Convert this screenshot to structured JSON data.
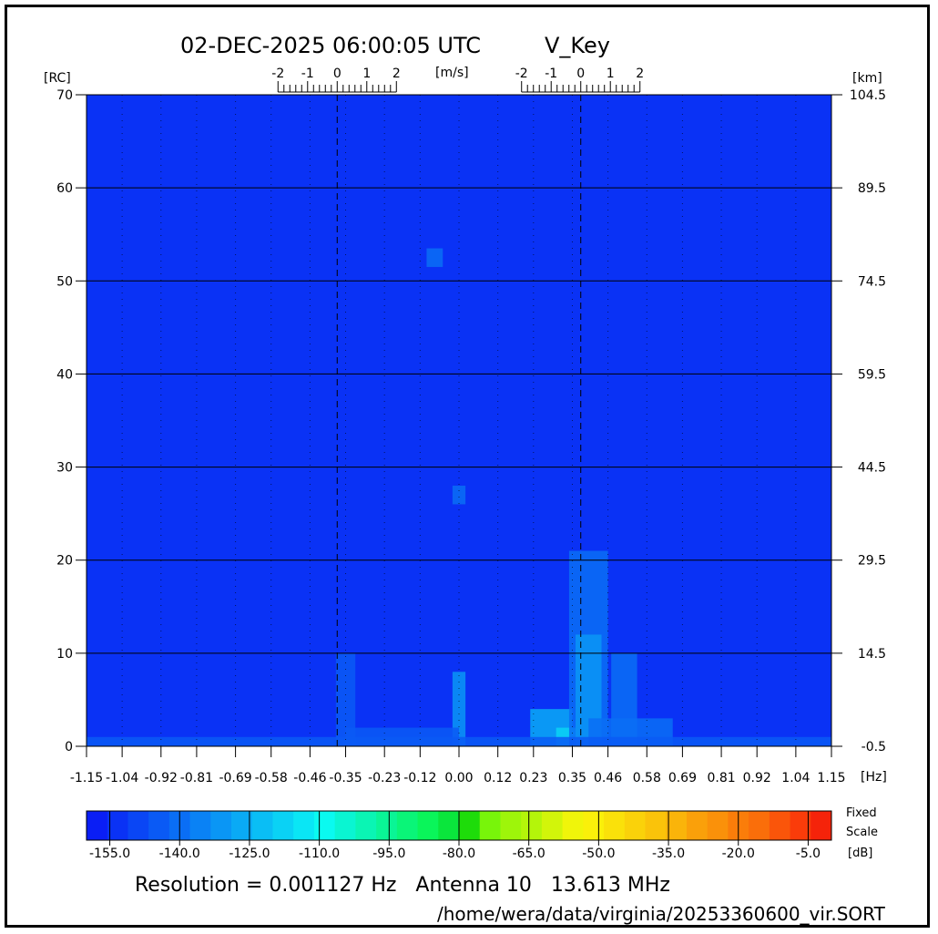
{
  "header": {
    "timestamp": "02-DEC-2025 06:00:05 UTC",
    "station": "V_Key"
  },
  "footer": {
    "resolution": "Resolution = 0.001127 Hz   Antenna 10   13.613 MHz",
    "path": "/home/wera/data/virginia/20253360600_vir.SORT"
  },
  "chart_data": {
    "type": "heatmap",
    "xlabel_unit": "[Hz]",
    "ylabel_left_unit": "[RC]",
    "ylabel_right_unit": "[km]",
    "velocity_unit": "[m/s]",
    "x_ticks": [
      "-1.15",
      "-1.04",
      "-0.92",
      "-0.81",
      "-0.69",
      "-0.58",
      "-0.46",
      "-0.35",
      "-0.23",
      "-0.12",
      "0.00",
      "0.12",
      "0.23",
      "0.35",
      "0.46",
      "0.58",
      "0.69",
      "0.81",
      "0.92",
      "1.04",
      "1.15"
    ],
    "xlim": [
      -1.15,
      1.15
    ],
    "y_left_ticks": [
      "0",
      "10",
      "20",
      "30",
      "40",
      "50",
      "60",
      "70"
    ],
    "ylim_left": [
      0,
      70
    ],
    "y_right_ticks": [
      "-0.5",
      "14.5",
      "29.5",
      "44.5",
      "59.5",
      "74.5",
      "89.5",
      "104.5"
    ],
    "velocity_ticks": [
      "-2",
      "-1",
      "0",
      "1",
      "2"
    ],
    "velocity_axis_centers_hz": [
      -0.376,
      0.376
    ],
    "grid": true,
    "colorbar": {
      "ticks": [
        "-155.0",
        "-140.0",
        "-125.0",
        "-110.0",
        "-95.0",
        "-80.0",
        "-65.0",
        "-50.0",
        "-35.0",
        "-20.0",
        "-5.0"
      ],
      "range_db": [
        -160,
        0
      ],
      "label_fixed": "Fixed",
      "label_scale": "Scale",
      "label_unit": "[dB]",
      "colors": [
        "#0a1ef5",
        "#0a32f5",
        "#0a46f5",
        "#0a5af5",
        "#0a6ef5",
        "#0a82f5",
        "#0a96f5",
        "#0aaaf5",
        "#0abef5",
        "#0ad2f5",
        "#0ae6f5",
        "#0afaf0",
        "#0af5d2",
        "#0af5b4",
        "#0af596",
        "#0af578",
        "#0af55a",
        "#0ae63c",
        "#1edc0a",
        "#78f50a",
        "#9ef50a",
        "#b4f50a",
        "#d2f50a",
        "#f0f50a",
        "#faf00a",
        "#fae10a",
        "#fad20a",
        "#fac30a",
        "#fab40a",
        "#faa00a",
        "#fa910a",
        "#fa7d0a",
        "#fa6e0a",
        "#fa550a",
        "#fa3c0a",
        "#f5230a"
      ]
    },
    "background_db": -153,
    "features": [
      {
        "freq_hz": [
          -0.1,
          -0.05
        ],
        "rc": [
          51.5,
          53.5
        ],
        "db": -140
      },
      {
        "freq_hz": [
          -0.02,
          0.02
        ],
        "rc": [
          26,
          28
        ],
        "db": -142
      },
      {
        "freq_hz": [
          -0.02,
          0.02
        ],
        "rc": [
          0,
          8
        ],
        "db": -130
      },
      {
        "freq_hz": [
          -0.38,
          -0.32
        ],
        "rc": [
          0,
          10
        ],
        "db": -143
      },
      {
        "freq_hz": [
          -0.35,
          0.0
        ],
        "rc": [
          0,
          2
        ],
        "db": -143
      },
      {
        "freq_hz": [
          0.22,
          0.35
        ],
        "rc": [
          0,
          4
        ],
        "db": -128
      },
      {
        "freq_hz": [
          0.3,
          0.36
        ],
        "rc": [
          0,
          2
        ],
        "db": -120
      },
      {
        "freq_hz": [
          0.34,
          0.46
        ],
        "rc": [
          0,
          21
        ],
        "db": -138
      },
      {
        "freq_hz": [
          0.36,
          0.44
        ],
        "rc": [
          0,
          12
        ],
        "db": -132
      },
      {
        "freq_hz": [
          0.47,
          0.55
        ],
        "rc": [
          0,
          10
        ],
        "db": -138
      },
      {
        "freq_hz": [
          0.4,
          0.66
        ],
        "rc": [
          0,
          3
        ],
        "db": -138
      },
      {
        "freq_hz": [
          -1.15,
          1.15
        ],
        "rc": [
          0,
          1
        ],
        "db": -146
      }
    ]
  }
}
